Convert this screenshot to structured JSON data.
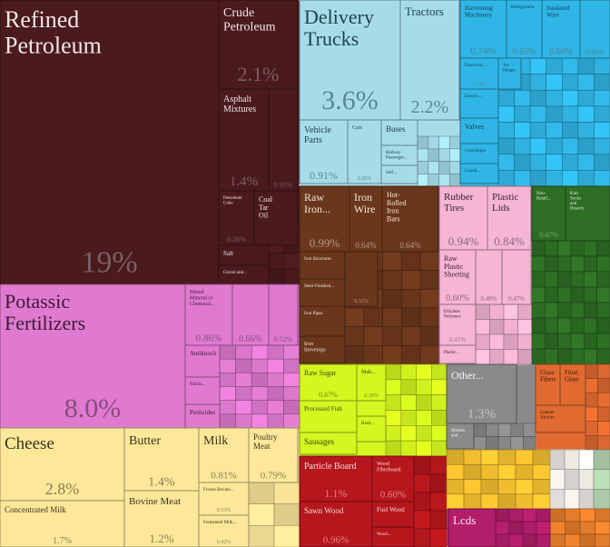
{
  "chart_data": {
    "type": "treemap",
    "title": "",
    "colors": {
      "mineral_products": "#4a1a1d",
      "chemical_products": "#e07ad0",
      "animal_products": "#fde89a",
      "transportation": "#a6dcea",
      "machines": "#30b6e6",
      "metals": "#6b371c",
      "plastics_rubbers": "#f6b5d3",
      "vegetable_products": "#2d6e24",
      "foodstuffs": "#d5f61f",
      "miscellaneous": "#8a8a8a",
      "instruments": "#e06a30",
      "wood_products": "#b5171c",
      "textiles": "#f5c12f",
      "paper_goods": "#f2eee8",
      "precious_metals": "#b8d9b4",
      "footwear": "#e87f2c",
      "electronics_lcds": "#b21e6a"
    },
    "tiles": [
      {
        "label": "Refined Petroleum",
        "value": "19%",
        "group": "mineral_products"
      },
      {
        "label": "Crude Petroleum",
        "value": "2.1%",
        "group": "mineral_products"
      },
      {
        "label": "Asphalt Mixtures",
        "value": "1.4%",
        "group": "mineral_products"
      },
      {
        "label": "",
        "value": "0.95%",
        "group": "mineral_products"
      },
      {
        "label": "Petroleum Coke",
        "value": "0.56%",
        "group": "mineral_products"
      },
      {
        "label": "Coal Tar Oil",
        "value": "",
        "group": "mineral_products"
      },
      {
        "label": "Salt",
        "value": "",
        "group": "mineral_products"
      },
      {
        "label": "Gravel and...",
        "value": "",
        "group": "mineral_products"
      },
      {
        "label": "Potassic Fertilizers",
        "value": "8.0%",
        "group": "chemical_products"
      },
      {
        "label": "Mixed Mineral or Chemical...",
        "value": "0.86%",
        "group": "chemical_products"
      },
      {
        "label": "",
        "value": "0.66%",
        "group": "chemical_products"
      },
      {
        "label": "",
        "value": "0.52%",
        "group": "chemical_products"
      },
      {
        "label": "Antiknock",
        "value": "",
        "group": "chemical_products"
      },
      {
        "label": "Nitrile...",
        "value": "",
        "group": "chemical_products"
      },
      {
        "label": "Pesticides",
        "value": "",
        "group": "chemical_products"
      },
      {
        "label": "Cheese",
        "value": "2.8%",
        "group": "animal_products"
      },
      {
        "label": "Concentrated Milk",
        "value": "1.7%",
        "group": "animal_products"
      },
      {
        "label": "Butter",
        "value": "1.4%",
        "group": "animal_products"
      },
      {
        "label": "Bovine Meat",
        "value": "1.2%",
        "group": "animal_products"
      },
      {
        "label": "Milk",
        "value": "0.81%",
        "group": "animal_products"
      },
      {
        "label": "Poultry Meat",
        "value": "0.79%",
        "group": "animal_products"
      },
      {
        "label": "Frozen Bovine...",
        "value": "0.53%",
        "group": "animal_products"
      },
      {
        "label": "Fermented Milk...",
        "value": "0.42%",
        "group": "animal_products"
      },
      {
        "label": "Delivery Trucks",
        "value": "3.6%",
        "group": "transportation"
      },
      {
        "label": "Tractors",
        "value": "2.2%",
        "group": "transportation"
      },
      {
        "label": "Vehicle Parts",
        "value": "0.91%",
        "group": "transportation"
      },
      {
        "label": "Cars",
        "value": "0.36%",
        "group": "transportation"
      },
      {
        "label": "Buses",
        "value": "",
        "group": "transportation"
      },
      {
        "label": "Railway Passenger...",
        "value": "",
        "group": "transportation"
      },
      {
        "label": "Self...",
        "value": "",
        "group": "transportation"
      },
      {
        "label": "Harvesting Machinery",
        "value": "0.74%",
        "group": "machines"
      },
      {
        "label": "Refrigerators",
        "value": "0.65%",
        "group": "machines"
      },
      {
        "label": "Insulated Wire",
        "value": "0.60%",
        "group": "machines"
      },
      {
        "label": "",
        "value": "0.49%",
        "group": "machines"
      },
      {
        "label": "Electrical...",
        "value": "0.43%",
        "group": "machines"
      },
      {
        "label": "Air Pumps",
        "value": "",
        "group": "machines"
      },
      {
        "label": "Electric...",
        "value": "",
        "group": "machines"
      },
      {
        "label": "Valves",
        "value": "",
        "group": "machines"
      },
      {
        "label": "Centrifuges",
        "value": "",
        "group": "machines"
      },
      {
        "label": "Liquid...",
        "value": "",
        "group": "machines"
      },
      {
        "label": "Raw Iron...",
        "value": "0.99%",
        "group": "metals"
      },
      {
        "label": "Iron Wire",
        "value": "0.64%",
        "group": "metals"
      },
      {
        "label": "Hot-Rolled Iron Bars",
        "value": "0.64%",
        "group": "metals"
      },
      {
        "label": "Iron Structures",
        "value": "",
        "group": "metals"
      },
      {
        "label": "Semi-Finished...",
        "value": "",
        "group": "metals"
      },
      {
        "label": "",
        "value": "0.32%",
        "group": "metals"
      },
      {
        "label": "Iron Pipes",
        "value": "",
        "group": "metals"
      },
      {
        "label": "Iron Stovetops",
        "value": "",
        "group": "metals"
      },
      {
        "label": "Rubber Tires",
        "value": "0.94%",
        "group": "plastics_rubbers"
      },
      {
        "label": "Plastic Lids",
        "value": "0.84%",
        "group": "plastics_rubbers"
      },
      {
        "label": "Raw Plastic Sheeting",
        "value": "0.60%",
        "group": "plastics_rubbers"
      },
      {
        "label": "",
        "value": "0.48%",
        "group": "plastics_rubbers"
      },
      {
        "label": "",
        "value": "0.47%",
        "group": "plastics_rubbers"
      },
      {
        "label": "Ethylene Polymers",
        "value": "0.41%",
        "group": "plastics_rubbers"
      },
      {
        "label": "Plastic...",
        "value": "",
        "group": "plastics_rubbers"
      },
      {
        "label": "Non-Retail...",
        "value": "0.47%",
        "group": "vegetable_products"
      },
      {
        "label": "Knit Socks and Hosiery",
        "value": "",
        "group": "vegetable_products"
      },
      {
        "label": "Raw Sugar",
        "value": "0.67%",
        "group": "foodstuffs"
      },
      {
        "label": "Malt...",
        "value": "0.38%",
        "group": "foodstuffs"
      },
      {
        "label": "Processed Fish",
        "value": "",
        "group": "foodstuffs"
      },
      {
        "label": "Hard...",
        "value": "",
        "group": "foodstuffs"
      },
      {
        "label": "Sausages",
        "value": "",
        "group": "foodstuffs"
      },
      {
        "label": "Other...",
        "value": "1.3%",
        "group": "miscellaneous"
      },
      {
        "label": "Models and...",
        "value": "",
        "group": "miscellaneous"
      },
      {
        "label": "Glass Fibers",
        "value": "",
        "group": "instruments"
      },
      {
        "label": "Float Glass",
        "value": "",
        "group": "instruments"
      },
      {
        "label": "Cement Articles",
        "value": "",
        "group": "instruments"
      },
      {
        "label": "Particle Board",
        "value": "1.1%",
        "group": "wood_products"
      },
      {
        "label": "Wood Fiberboard",
        "value": "0.60%",
        "group": "wood_products"
      },
      {
        "label": "Sawn Wood",
        "value": "0.96%",
        "group": "wood_products"
      },
      {
        "label": "Fuel Wood",
        "value": "",
        "group": "wood_products"
      },
      {
        "label": "Wood...",
        "value": "",
        "group": "wood_products"
      },
      {
        "label": "Lcds",
        "value": "",
        "group": "electronics_lcds"
      }
    ]
  }
}
